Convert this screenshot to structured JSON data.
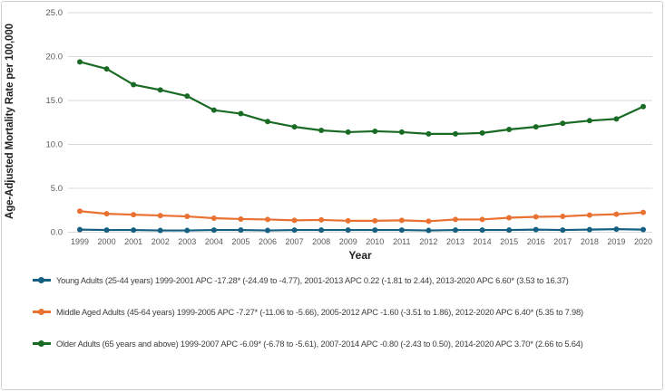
{
  "chart_data": {
    "type": "line",
    "xlabel": "Year",
    "ylabel": "Age-Adjusted Mortality Rate per 100,000",
    "ylim": [
      0,
      25
    ],
    "ytick_step": 5,
    "ytick_labels": [
      "0.0",
      "5.0",
      "10.0",
      "15.0",
      "20.0",
      "25.0"
    ],
    "grid": "horizontal",
    "legend_position": "bottom",
    "categories": [
      "1999",
      "2000",
      "2001",
      "2002",
      "2003",
      "2004",
      "2005",
      "2006",
      "2007",
      "2008",
      "2009",
      "2010",
      "2011",
      "2012",
      "2013",
      "2014",
      "2015",
      "2016",
      "2017",
      "2018",
      "2019",
      "2020"
    ],
    "series": [
      {
        "name": "Young Adults (25-44 years)",
        "color": "#156082",
        "values": [
          0.3,
          0.25,
          0.25,
          0.2,
          0.2,
          0.25,
          0.25,
          0.2,
          0.25,
          0.25,
          0.25,
          0.25,
          0.25,
          0.2,
          0.25,
          0.25,
          0.25,
          0.3,
          0.25,
          0.3,
          0.35,
          0.3
        ]
      },
      {
        "name": "Middle Aged Adults (45-64 years)",
        "color": "#E97132",
        "values": [
          2.4,
          2.1,
          2.0,
          1.9,
          1.8,
          1.6,
          1.5,
          1.45,
          1.35,
          1.4,
          1.3,
          1.3,
          1.35,
          1.25,
          1.45,
          1.45,
          1.65,
          1.75,
          1.8,
          1.95,
          2.05,
          2.25
        ]
      },
      {
        "name": "Older Adults (65 years and above)",
        "color": "#196B24",
        "values": [
          19.4,
          18.6,
          16.8,
          16.2,
          15.5,
          13.9,
          13.5,
          12.6,
          12.0,
          11.6,
          11.4,
          11.5,
          11.4,
          11.2,
          11.2,
          11.3,
          11.7,
          12.0,
          12.4,
          12.7,
          12.9,
          14.3
        ]
      }
    ]
  },
  "legend": {
    "entries": [
      {
        "color": "#156082",
        "label": "Young Adults (25-44 years) 1999-2001 APC -17.28* (-24.49 to -4.77), 2001-2013 APC 0.22 (-1.81 to 2.44), 2013-2020 APC 6.60* (3.53 to 16.37)"
      },
      {
        "color": "#E97132",
        "label": "Middle Aged Adults (45-64 years) 1999-2005 APC -7.27* (-11.06 to -5.66), 2005-2012 APC -1.60 (-3.51 to 1.86), 2012-2020 APC 6.40* (5.35 to 7.98)"
      },
      {
        "color": "#196B24",
        "label": "Older Adults (65 years and above) 1999-2007 APC -6.09* (-6.78 to -5.61), 2007-2014 APC -0.80 (-2.43 to 0.50), 2014-2020 APC 3.70* (2.66 to 5.64)"
      }
    ]
  },
  "colors": {
    "grid": "#d9d9d9",
    "tick_label": "#595959",
    "axis_title": "#1f1f1f",
    "border": "#d0d0d0",
    "legend_text": "#3d3d3d"
  }
}
